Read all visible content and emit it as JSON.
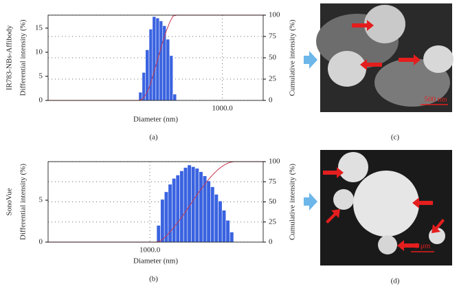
{
  "chart_data": [
    {
      "type": "histogram",
      "sample": "IR783-NBs-Affibody",
      "ylabel": "Differential intensity (%)",
      "y2label": "Cumulative intensity (%)",
      "xlabel": "Diameter (nm)",
      "panel": "(a)",
      "xscale": "log",
      "xlim": [
        20,
        2500
      ],
      "xticks": [
        {
          "value": 1000,
          "label": "1000.0"
        }
      ],
      "ylim": [
        0,
        17.7
      ],
      "yticks": [
        0,
        5,
        10,
        15
      ],
      "y2lim": [
        0,
        100
      ],
      "y2ticks": [
        0,
        25,
        50,
        75,
        100
      ],
      "grid": true,
      "color": "#3a63e0",
      "bins": [
        153,
        165,
        178,
        193,
        208,
        225,
        243,
        262,
        283,
        306,
        330,
        357
      ],
      "values": [
        1.7,
        5.8,
        10.5,
        14.8,
        17.4,
        17.1,
        16.5,
        15.5,
        12.7,
        9.3,
        1.3
      ],
      "line": {
        "color": "#c8384e",
        "axis": "y2",
        "x": [
          20,
          153,
          165,
          178,
          193,
          208,
          225,
          243,
          262,
          283,
          306,
          330,
          357,
          2500
        ],
        "values": [
          0,
          0,
          1.4,
          6.1,
          14.7,
          26.7,
          40.9,
          54.9,
          68.3,
          81.0,
          91.3,
          98.9,
          100,
          100
        ]
      }
    },
    {
      "type": "histogram",
      "sample": "SonoVue",
      "ylabel": "Differential intensity (%)",
      "y2label": "Cumulative intensity (%)",
      "xlabel": "Diameter (nm)",
      "panel": "(b)",
      "xscale": "log",
      "xlim": [
        100,
        13000
      ],
      "xticks": [
        {
          "value": 1000,
          "label": "1000.0"
        }
      ],
      "ylim": [
        0,
        9.6
      ],
      "yticks": [
        0,
        5
      ],
      "y2lim": [
        0,
        100
      ],
      "y2ticks": [
        0,
        25,
        50,
        75,
        100
      ],
      "grid": true,
      "color": "#3a63e0",
      "bins": [
        1167,
        1273,
        1389,
        1516,
        1654,
        1804,
        1968,
        2147,
        2343,
        2556,
        2789,
        3043,
        3320,
        3622,
        3951,
        4311,
        4703,
        5131,
        5598,
        6108,
        6664
      ],
      "values": [
        2,
        5.1,
        6,
        6.9,
        7.6,
        8,
        8.5,
        8.9,
        9.2,
        9,
        8.8,
        8.4,
        7.9,
        7.3,
        6.6,
        5.7,
        4.9,
        3.8,
        2.6,
        1.2
      ],
      "line": {
        "color": "#c8384e",
        "axis": "y2",
        "x": [
          100,
          1167,
          1273,
          1389,
          1516,
          1654,
          1804,
          1968,
          2147,
          2343,
          2556,
          2789,
          3043,
          3320,
          3622,
          3951,
          4311,
          4703,
          5131,
          5598,
          6108,
          6664,
          13000
        ],
        "values": [
          0,
          0,
          1.6,
          5.5,
          10.2,
          15.6,
          21.5,
          27.7,
          34.3,
          41.3,
          48.4,
          55.5,
          62.3,
          68.8,
          75.0,
          80.7,
          85.8,
          90.3,
          94.1,
          97.0,
          99.1,
          100,
          100
        ]
      }
    }
  ],
  "images": [
    {
      "panel": "(c)",
      "scale_bar": "500 nm"
    },
    {
      "panel": "(d)",
      "scale_bar": "2 μm"
    }
  ]
}
